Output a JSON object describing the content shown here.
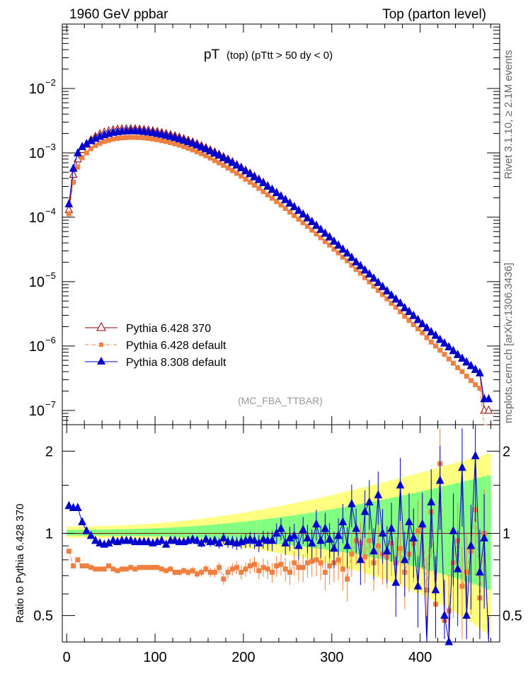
{
  "header": {
    "left": "1960 GeV ppbar",
    "right": "Top (parton level)",
    "title_main": "pT",
    "title_sub": "(top) (pTtt > 50 dy < 0)"
  },
  "side_labels": {
    "rivet": "Rivet 3.1.10, ≥ 2.1M events",
    "mcplots": "mcplots.cern.ch [arXiv:1306.3436]"
  },
  "analysis_label": "(MC_FBA_TTBAR)",
  "ratio_ylabel": "Ratio to Pythia 6.428 370",
  "colors": {
    "ref": "#8b0000",
    "p6def": "#f08040",
    "p8": "#0000cc",
    "band_yellow": "#ffff80",
    "band_green": "#80ff80"
  },
  "chart_data": [
    {
      "type": "line",
      "panel": "main",
      "xlabel": "",
      "ylabel": "",
      "yscale": "log",
      "xlim": [
        -5,
        490
      ],
      "ylim": [
        6e-08,
        0.1
      ],
      "x": [
        2.5,
        7.5,
        12.5,
        17.5,
        22.5,
        27.5,
        32.5,
        37.5,
        42.5,
        47.5,
        52.5,
        57.5,
        62.5,
        67.5,
        72.5,
        77.5,
        82.5,
        87.5,
        92.5,
        97.5,
        102.5,
        107.5,
        112.5,
        117.5,
        122.5,
        127.5,
        132.5,
        137.5,
        142.5,
        147.5,
        152.5,
        157.5,
        162.5,
        167.5,
        172.5,
        177.5,
        182.5,
        187.5,
        192.5,
        197.5,
        202.5,
        207.5,
        212.5,
        217.5,
        222.5,
        227.5,
        232.5,
        237.5,
        242.5,
        247.5,
        252.5,
        257.5,
        262.5,
        267.5,
        272.5,
        277.5,
        282.5,
        287.5,
        292.5,
        297.5,
        302.5,
        307.5,
        312.5,
        317.5,
        322.5,
        327.5,
        332.5,
        337.5,
        342.5,
        347.5,
        352.5,
        357.5,
        362.5,
        367.5,
        372.5,
        377.5,
        382.5,
        387.5,
        392.5,
        397.5,
        402.5,
        407.5,
        412.5,
        417.5,
        422.5,
        427.5,
        432.5,
        437.5,
        442.5,
        447.5,
        452.5,
        457.5,
        462.5,
        467.5,
        472.5,
        477.5
      ],
      "series": [
        {
          "name": "Pythia 6.428 370",
          "marker": "open-triangle",
          "values": [
            0.00013,
            0.00046,
            0.0008,
            0.00112,
            0.00135,
            0.00158,
            0.00178,
            0.00195,
            0.00207,
            0.00217,
            0.00225,
            0.0023,
            0.00233,
            0.00235,
            0.00235,
            0.00234,
            0.00232,
            0.00228,
            0.00224,
            0.00218,
            0.00212,
            0.00205,
            0.00198,
            0.0019,
            0.00182,
            0.00173,
            0.00164,
            0.00155,
            0.00146,
            0.00137,
            0.00128,
            0.00119,
            0.0011,
            0.00102,
            0.00094,
            0.00086,
            0.00079,
            0.00072,
            0.00065,
            0.00059,
            0.00053,
            0.00048,
            0.00043,
            0.000385,
            0.000345,
            0.000305,
            0.00027,
            0.00024,
            0.000212,
            0.000187,
            0.000165,
            0.000145,
            0.000127,
            0.000111,
            9.7e-05,
            8.5e-05,
            7.4e-05,
            6.4e-05,
            5.6e-05,
            4.9e-05,
            4.2e-05,
            3.65e-05,
            3.15e-05,
            2.75e-05,
            2.35e-05,
            2e-05,
            1.75e-05,
            1.5e-05,
            1.3e-05,
            1.12e-05,
            9.6e-06,
            8.3e-06,
            7.1e-06,
            6.1e-06,
            5.3e-06,
            4.6e-06,
            3.9e-06,
            3.4e-06,
            2.95e-06,
            2.55e-06,
            2.2e-06,
            1.9e-06,
            1.65e-06,
            1.45e-06,
            1.25e-06,
            1.1e-06,
            9.6e-07,
            8.4e-07,
            7.3e-07,
            6.4e-07,
            5.6e-07,
            4.9e-07,
            4.3e-07,
            3.8e-07,
            1e-07,
            1e-07
          ]
        },
        {
          "name": "Pythia 6.428 default",
          "marker": "filled-square",
          "values": [
            0.000113,
            0.00035,
            0.0006,
            0.00084,
            0.001,
            0.00116,
            0.0013,
            0.00141,
            0.0015,
            0.00157,
            0.00163,
            0.00168,
            0.00171,
            0.00173,
            0.00174,
            0.00174,
            0.00173,
            0.00171,
            0.00168,
            0.00164,
            0.0016,
            0.00155,
            0.0015,
            0.00144,
            0.00138,
            0.00132,
            0.00125,
            0.00118,
            0.00111,
            0.00104,
            0.00097,
            0.0009,
            0.00083,
            0.00076,
            0.0007,
            0.00064,
            0.00058,
            0.00053,
            0.00048,
            0.000435,
            0.00039,
            0.00035,
            0.000315,
            0.00028,
            0.00025,
            0.000222,
            0.000197,
            0.000175,
            0.000155,
            0.000137,
            0.00012,
            0.000106,
            9.3e-05,
            8.2e-05,
            7.2e-05,
            6.3e-05,
            5.5e-05,
            4.8e-05,
            4.2e-05,
            3.7e-05,
            3.2e-05,
            2.8e-05,
            2.4e-05,
            2.1e-05,
            1.8e-05,
            1.55e-05,
            1.35e-05,
            1.15e-05,
            9.9e-06,
            8.5e-06,
            7.3e-06,
            6.3e-06,
            5.4e-06,
            4.6e-06,
            4e-06,
            3.4e-06,
            2.9e-06,
            2.5e-06,
            2.15e-06,
            1.85e-06,
            1.6e-06,
            1.35e-06,
            1.15e-06,
            1e-06,
            8.6e-07,
            7.4e-07,
            6.3e-07,
            5.4e-07,
            4.6e-07,
            4e-07,
            3.4e-07,
            2.9e-07,
            2.5e-07,
            2.2e-07,
            3.3e-08,
            3.3e-08
          ]
        },
        {
          "name": "Pythia 8.308 default",
          "marker": "filled-triangle",
          "values": [
            0.00016,
            0.00057,
            0.00099,
            0.00124,
            0.00138,
            0.00153,
            0.00166,
            0.00179,
            0.00189,
            0.00198,
            0.00206,
            0.00211,
            0.00215,
            0.00217,
            0.00218,
            0.00218,
            0.00216,
            0.00213,
            0.00209,
            0.00204,
            0.00198,
            0.00192,
            0.00185,
            0.00178,
            0.00171,
            0.00163,
            0.00155,
            0.00147,
            0.00139,
            0.00131,
            0.00122,
            0.00114,
            0.00106,
            0.00098,
            0.00091,
            0.00083,
            0.00077,
            0.0007,
            0.00064,
            0.00058,
            0.00052,
            0.00047,
            0.00042,
            0.00038,
            0.00034,
            0.0003,
            0.000268,
            0.000238,
            0.00021,
            0.000186,
            0.000164,
            0.000144,
            0.000126,
            0.000111,
            9.7e-05,
            8.5e-05,
            7.4e-05,
            6.4e-05,
            5.6e-05,
            4.9e-05,
            4.2e-05,
            3.65e-05,
            3.15e-05,
            2.75e-05,
            2.35e-05,
            2e-05,
            1.75e-05,
            1.5e-05,
            1.3e-05,
            1.12e-05,
            9.6e-06,
            8.3e-06,
            7.1e-06,
            6.1e-06,
            5.3e-06,
            4.6e-06,
            3.9e-06,
            3.4e-06,
            2.95e-06,
            2.55e-06,
            2.2e-06,
            1.9e-06,
            1.65e-06,
            1.45e-06,
            1.25e-06,
            1.1e-06,
            9.6e-07,
            8.4e-07,
            7.3e-07,
            6.4e-07,
            5.6e-07,
            4.9e-07,
            4.3e-07,
            3.8e-07,
            1.5e-07,
            1.5e-07
          ]
        }
      ]
    },
    {
      "type": "line",
      "panel": "ratio",
      "ylabel": "Ratio to Pythia 6.428 370",
      "yscale": "log",
      "xlim": [
        -5,
        490
      ],
      "ylim": [
        0.4,
        2.5
      ],
      "x_ticks": [
        0,
        100,
        200,
        300,
        400
      ],
      "y_ticks": [
        0.5,
        1,
        2
      ],
      "series": [
        {
          "name": "Pythia 6.428 default",
          "values": [
            0.86,
            0.76,
            0.8,
            0.76,
            0.76,
            0.75,
            0.74,
            0.74,
            0.74,
            0.76,
            0.74,
            0.73,
            0.74,
            0.74,
            0.75,
            0.74,
            0.75,
            0.75,
            0.75,
            0.75,
            0.75,
            0.74,
            0.73,
            0.74,
            0.72,
            0.72,
            0.73,
            0.72,
            0.73,
            0.71,
            0.72,
            0.74,
            0.72,
            0.72,
            0.75,
            0.68,
            0.72,
            0.74,
            0.75,
            0.72,
            0.74,
            0.76,
            0.77,
            0.73,
            0.75,
            0.74,
            0.72,
            0.76,
            0.77,
            0.74,
            0.72,
            0.78,
            0.75,
            0.75,
            0.78,
            0.79,
            0.8,
            0.78,
            0.72,
            0.76,
            0.78,
            0.8,
            0.74,
            0.68,
            0.84,
            0.94,
            0.92,
            0.82,
            0.94,
            0.78,
            0.9,
            0.84,
            0.82,
            0.92,
            0.78,
            0.88,
            0.72,
            0.84,
            0.92,
            1.02,
            1.06,
            0.62,
            1.2,
            0.55,
            1.8,
            0.48,
            0.52,
            0.78,
            0.94,
            0.64,
            0.72,
            0.86,
            1.22,
            0.58,
            1.0,
            0.34
          ]
        },
        {
          "name": "Pythia 8.308 default",
          "values": [
            1.26,
            1.24,
            1.24,
            1.1,
            1.02,
            0.98,
            0.94,
            0.92,
            0.91,
            0.92,
            0.94,
            0.93,
            0.94,
            0.94,
            0.94,
            0.93,
            0.93,
            0.93,
            0.93,
            0.92,
            0.93,
            0.94,
            0.91,
            0.94,
            0.94,
            0.93,
            0.93,
            0.94,
            0.95,
            0.94,
            0.92,
            0.95,
            0.93,
            0.94,
            0.92,
            0.96,
            0.93,
            0.93,
            0.92,
            0.93,
            0.94,
            0.95,
            0.94,
            0.92,
            0.95,
            0.94,
            0.94,
            1.0,
            1.04,
            0.92,
            0.96,
            0.98,
            0.9,
            1.03,
            0.96,
            0.92,
            1.08,
            0.94,
            1.04,
            0.95,
            0.88,
            0.98,
            1.1,
            0.9,
            1.28,
            1.04,
            0.8,
            1.2,
            1.3,
            0.86,
            1.38,
            1.0,
            0.86,
            1.04,
            0.66,
            1.5,
            0.8,
            1.1,
            0.96,
            0.64,
            1.08,
            0.38,
            1.3,
            0.62,
            1.56,
            0.5,
            0.4,
            1.02,
            0.74,
            1.74,
            0.5,
            0.9,
            1.92,
            0.72,
            0.96,
            0.34
          ]
        }
      ]
    }
  ]
}
